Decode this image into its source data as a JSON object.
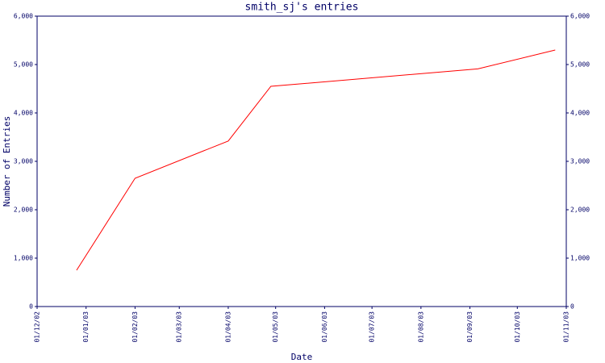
{
  "chart_data": {
    "type": "line",
    "title": "smith_sj's entries",
    "x_label": "Date",
    "y_label": "Number of Entries",
    "x": [
      "26/12/02",
      "01/02/03",
      "01/04/03",
      "28/04/03",
      "06/09/03",
      "25/10/03"
    ],
    "series": [
      {
        "name": "entries",
        "color": "#ff0000",
        "values": [
          750,
          2650,
          3420,
          4550,
          4910,
          5300
        ]
      }
    ],
    "xlim": [
      "01/12/02",
      "01/11/03"
    ],
    "xticks": [
      "01/12/02",
      "01/01/03",
      "01/02/03",
      "01/03/03",
      "01/04/03",
      "01/05/03",
      "01/06/03",
      "01/07/03",
      "01/08/03",
      "01/09/03",
      "01/10/03",
      "01/11/03"
    ],
    "ylim": [
      0,
      6000
    ],
    "yticks": [
      0,
      {
        "value": 1000,
        "label": "1,000"
      },
      {
        "value": 2000,
        "label": "2,000"
      },
      {
        "value": 3000,
        "label": "3,000"
      },
      {
        "value": 4000,
        "label": "4,000"
      },
      {
        "value": 5000,
        "label": "5,000"
      },
      {
        "value": 6000,
        "label": "6,000"
      }
    ]
  }
}
